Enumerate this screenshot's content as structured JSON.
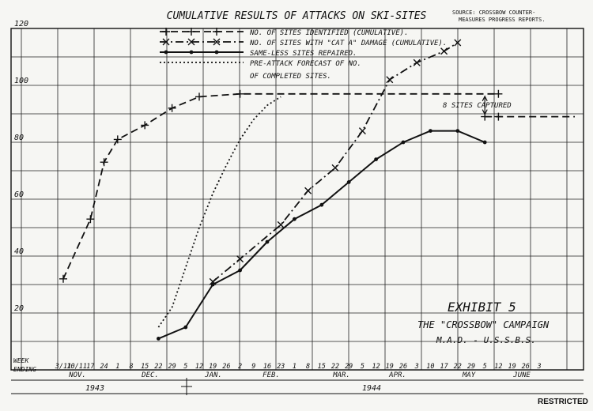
{
  "chart_data": {
    "type": "line",
    "title": "CUMULATIVE RESULTS OF ATTACKS ON SKI-SITES",
    "source_note": [
      "SOURCE: CROSSBOW COUNTER-",
      "MEASURES PROGRESS REPORTS."
    ],
    "ylim": [
      0,
      120
    ],
    "y_ticks": [
      20,
      40,
      60,
      80,
      100,
      120
    ],
    "x_header": "WEEK ENDING",
    "x_week_labels": [
      "3/11",
      "10/11",
      "17",
      "24",
      "1",
      "8",
      "15",
      "22",
      "29",
      "5",
      "12",
      "19",
      "26",
      "2",
      "9",
      "16",
      "23",
      "1",
      "8",
      "15",
      "22",
      "29",
      "5",
      "12",
      "19",
      "26",
      "3",
      "10",
      "17",
      "22",
      "29",
      "5",
      "12",
      "19",
      "26",
      "3"
    ],
    "months": [
      "NOV.",
      "DEC.",
      "JAN.",
      "FEB.",
      "MAR.",
      "APR.",
      "MAY",
      "JUNE"
    ],
    "years": [
      "1943",
      "1944"
    ],
    "series": [
      {
        "name": "NO. OF SITES IDENTIFIED (CUMULATIVE).",
        "style": "dash-plus",
        "points": [
          [
            0,
            32
          ],
          [
            2,
            53
          ],
          [
            3,
            73
          ],
          [
            4,
            81
          ],
          [
            6,
            86
          ],
          [
            8,
            92
          ],
          [
            10,
            96
          ],
          [
            13,
            97
          ],
          [
            32,
            97
          ]
        ]
      },
      {
        "name": "NO. OF SITES WITH \"CAT A\" DAMAGE (CUMULATIVE).",
        "style": "dashdot-x",
        "points": [
          [
            11,
            31
          ],
          [
            13,
            39
          ],
          [
            16,
            51
          ],
          [
            18,
            63
          ],
          [
            20,
            71
          ],
          [
            22,
            84
          ],
          [
            24,
            102
          ],
          [
            26,
            108
          ],
          [
            28,
            112
          ],
          [
            29,
            115
          ]
        ]
      },
      {
        "name": "SAME-LESS SITES REPAIRED.",
        "style": "solid-dot",
        "points": [
          [
            7,
            11
          ],
          [
            9,
            15
          ],
          [
            11,
            30
          ],
          [
            13,
            35
          ],
          [
            15,
            45
          ],
          [
            17,
            53
          ],
          [
            19,
            58
          ],
          [
            21,
            66
          ],
          [
            23,
            74
          ],
          [
            25,
            80
          ],
          [
            27,
            84
          ],
          [
            29,
            84
          ],
          [
            31,
            80
          ]
        ]
      },
      {
        "name": "PRE-ATTACK FORECAST OF NO. OF COMPLETED SITES.",
        "style": "dotted",
        "points": [
          [
            7,
            15
          ],
          [
            8,
            22
          ],
          [
            9,
            36
          ],
          [
            10,
            50
          ],
          [
            11,
            62
          ],
          [
            12,
            72
          ],
          [
            13,
            81
          ],
          [
            14,
            88
          ],
          [
            15,
            93
          ],
          [
            16,
            96
          ]
        ]
      }
    ],
    "captured_points": [
      [
        31,
        89
      ],
      [
        32,
        89
      ]
    ],
    "annotations": {
      "captured": "8 SITES CAPTURED",
      "exhibit": "EXHIBIT 5",
      "campaign": "THE \"CROSSBOW\" CAMPAIGN",
      "agency": "M.A.D. - U.S.S.B.S.",
      "restricted": "RESTRICTED"
    }
  }
}
